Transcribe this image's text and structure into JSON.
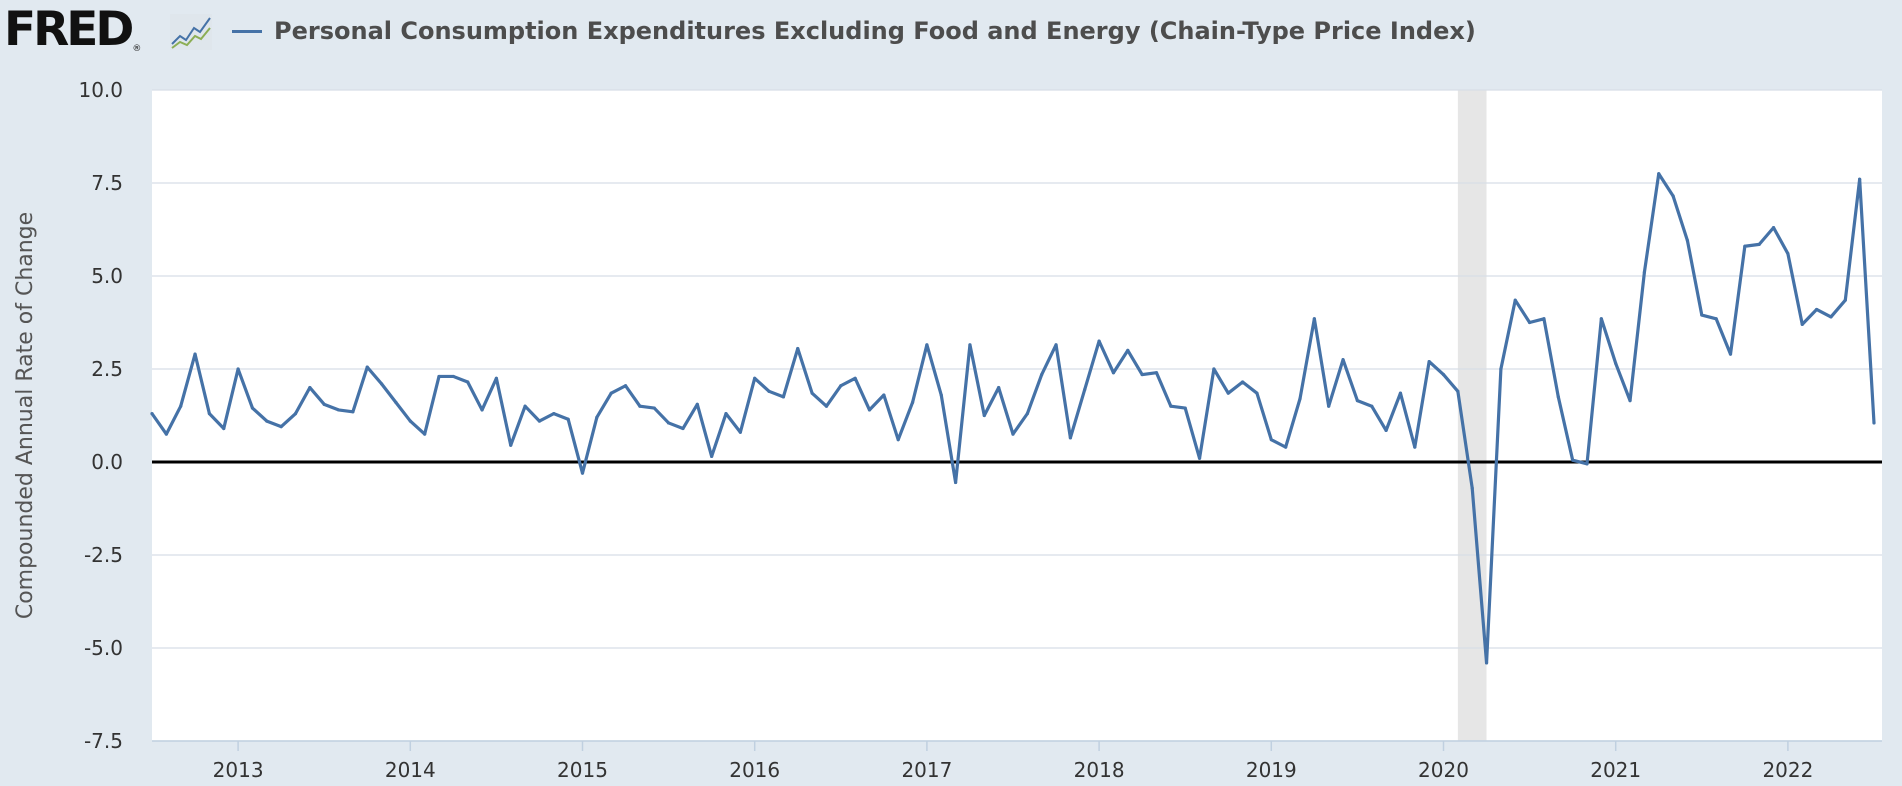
{
  "header": {
    "logo_text": "FRED",
    "logo_registered": "®",
    "logo_mark_icon": "chart-mark-icon"
  },
  "colors": {
    "series": "#4572a7",
    "recession": "#e6e6e6",
    "zero_line": "#000000",
    "grid": "#d8dee6",
    "plot_background": "#ffffff",
    "page_background": "#e1e9f0"
  },
  "chart_data": {
    "type": "line",
    "title": "",
    "xlabel": "",
    "ylabel": "Compounded Annual Rate of Change",
    "ylim": [
      -7.5,
      10.0
    ],
    "y_ticks": [
      10.0,
      7.5,
      5.0,
      2.5,
      0.0,
      -2.5,
      -5.0,
      -7.5
    ],
    "y_tick_labels": [
      "10.0",
      "7.5",
      "5.0",
      "2.5",
      "0.0",
      "-2.5",
      "-5.0",
      "-7.5"
    ],
    "x_start": "2012-07",
    "x_tick_labels": [
      "2013",
      "2014",
      "2015",
      "2016",
      "2017",
      "2018",
      "2019",
      "2020",
      "2021",
      "2022"
    ],
    "grid": true,
    "legend_position": "top-left",
    "recessions": [
      {
        "start": "2020-02",
        "end": "2020-04"
      }
    ],
    "series": [
      {
        "name": "Personal Consumption Expenditures Excluding Food and Energy (Chain-Type Price Index)",
        "frequency": "monthly",
        "start": "2012-07",
        "values": [
          1.3,
          0.75,
          1.5,
          2.9,
          1.3,
          0.9,
          2.5,
          1.45,
          1.1,
          0.95,
          1.3,
          2.0,
          1.55,
          1.4,
          1.35,
          2.55,
          2.1,
          1.6,
          1.1,
          0.75,
          2.3,
          2.3,
          2.15,
          1.4,
          2.25,
          0.45,
          1.5,
          1.1,
          1.3,
          1.15,
          -0.3,
          1.2,
          1.85,
          2.05,
          1.5,
          1.45,
          1.05,
          0.9,
          1.55,
          0.15,
          1.3,
          0.8,
          2.25,
          1.9,
          1.75,
          3.05,
          1.85,
          1.5,
          2.05,
          2.25,
          1.4,
          1.8,
          0.6,
          1.6,
          3.15,
          1.8,
          -0.55,
          3.15,
          1.25,
          2.0,
          0.75,
          1.3,
          2.35,
          3.15,
          0.65,
          1.95,
          3.25,
          2.4,
          3.0,
          2.35,
          2.4,
          1.5,
          1.45,
          0.1,
          2.5,
          1.85,
          2.15,
          1.85,
          0.6,
          0.4,
          1.7,
          3.85,
          1.5,
          2.75,
          1.65,
          1.5,
          0.85,
          1.85,
          0.4,
          2.7,
          2.35,
          1.9,
          -0.7,
          -5.4,
          2.5,
          4.35,
          3.75,
          3.85,
          1.75,
          0.05,
          -0.05,
          3.85,
          2.65,
          1.65,
          5.1,
          7.75,
          7.15,
          5.95,
          3.95,
          3.85,
          2.9,
          5.8,
          5.85,
          6.3,
          5.6,
          3.7,
          4.1,
          3.9,
          4.35,
          7.6,
          1.05
        ]
      }
    ]
  }
}
